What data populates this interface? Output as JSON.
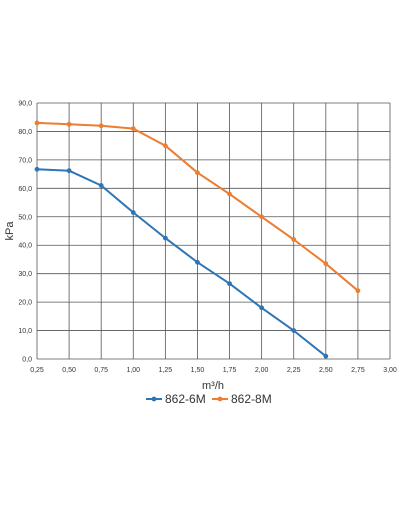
{
  "chart_data": {
    "type": "line",
    "xlabel": "m³/h",
    "ylabel": "kPa",
    "xlim": [
      0.25,
      3.0
    ],
    "ylim": [
      0,
      90
    ],
    "x_ticks": [
      "0,25",
      "0,50",
      "0,75",
      "1,00",
      "1,25",
      "1,50",
      "1,75",
      "2,00",
      "2,25",
      "2,50",
      "2,75",
      "3,00"
    ],
    "y_ticks": [
      "0,0",
      "10,0",
      "20,0",
      "30,0",
      "40,0",
      "50,0",
      "60,0",
      "70,0",
      "80,0",
      "90,0"
    ],
    "grid": true,
    "legend": "bottom",
    "series": [
      {
        "name": "862-6M",
        "color": "#2e75b6",
        "x": [
          0.25,
          0.5,
          0.75,
          1.0,
          1.25,
          1.5,
          1.75,
          2.0,
          2.25,
          2.5
        ],
        "y": [
          66.7,
          66.2,
          61.0,
          51.5,
          42.5,
          34.0,
          26.5,
          18.0,
          10.0,
          1.0
        ]
      },
      {
        "name": "862-8M",
        "color": "#ed7d31",
        "x": [
          0.25,
          0.5,
          0.75,
          1.0,
          1.25,
          1.5,
          1.75,
          2.0,
          2.25,
          2.5,
          2.75
        ],
        "y": [
          83.0,
          82.5,
          82.0,
          81.0,
          75.0,
          65.5,
          58.0,
          50.0,
          42.0,
          33.5,
          24.0
        ]
      }
    ]
  }
}
